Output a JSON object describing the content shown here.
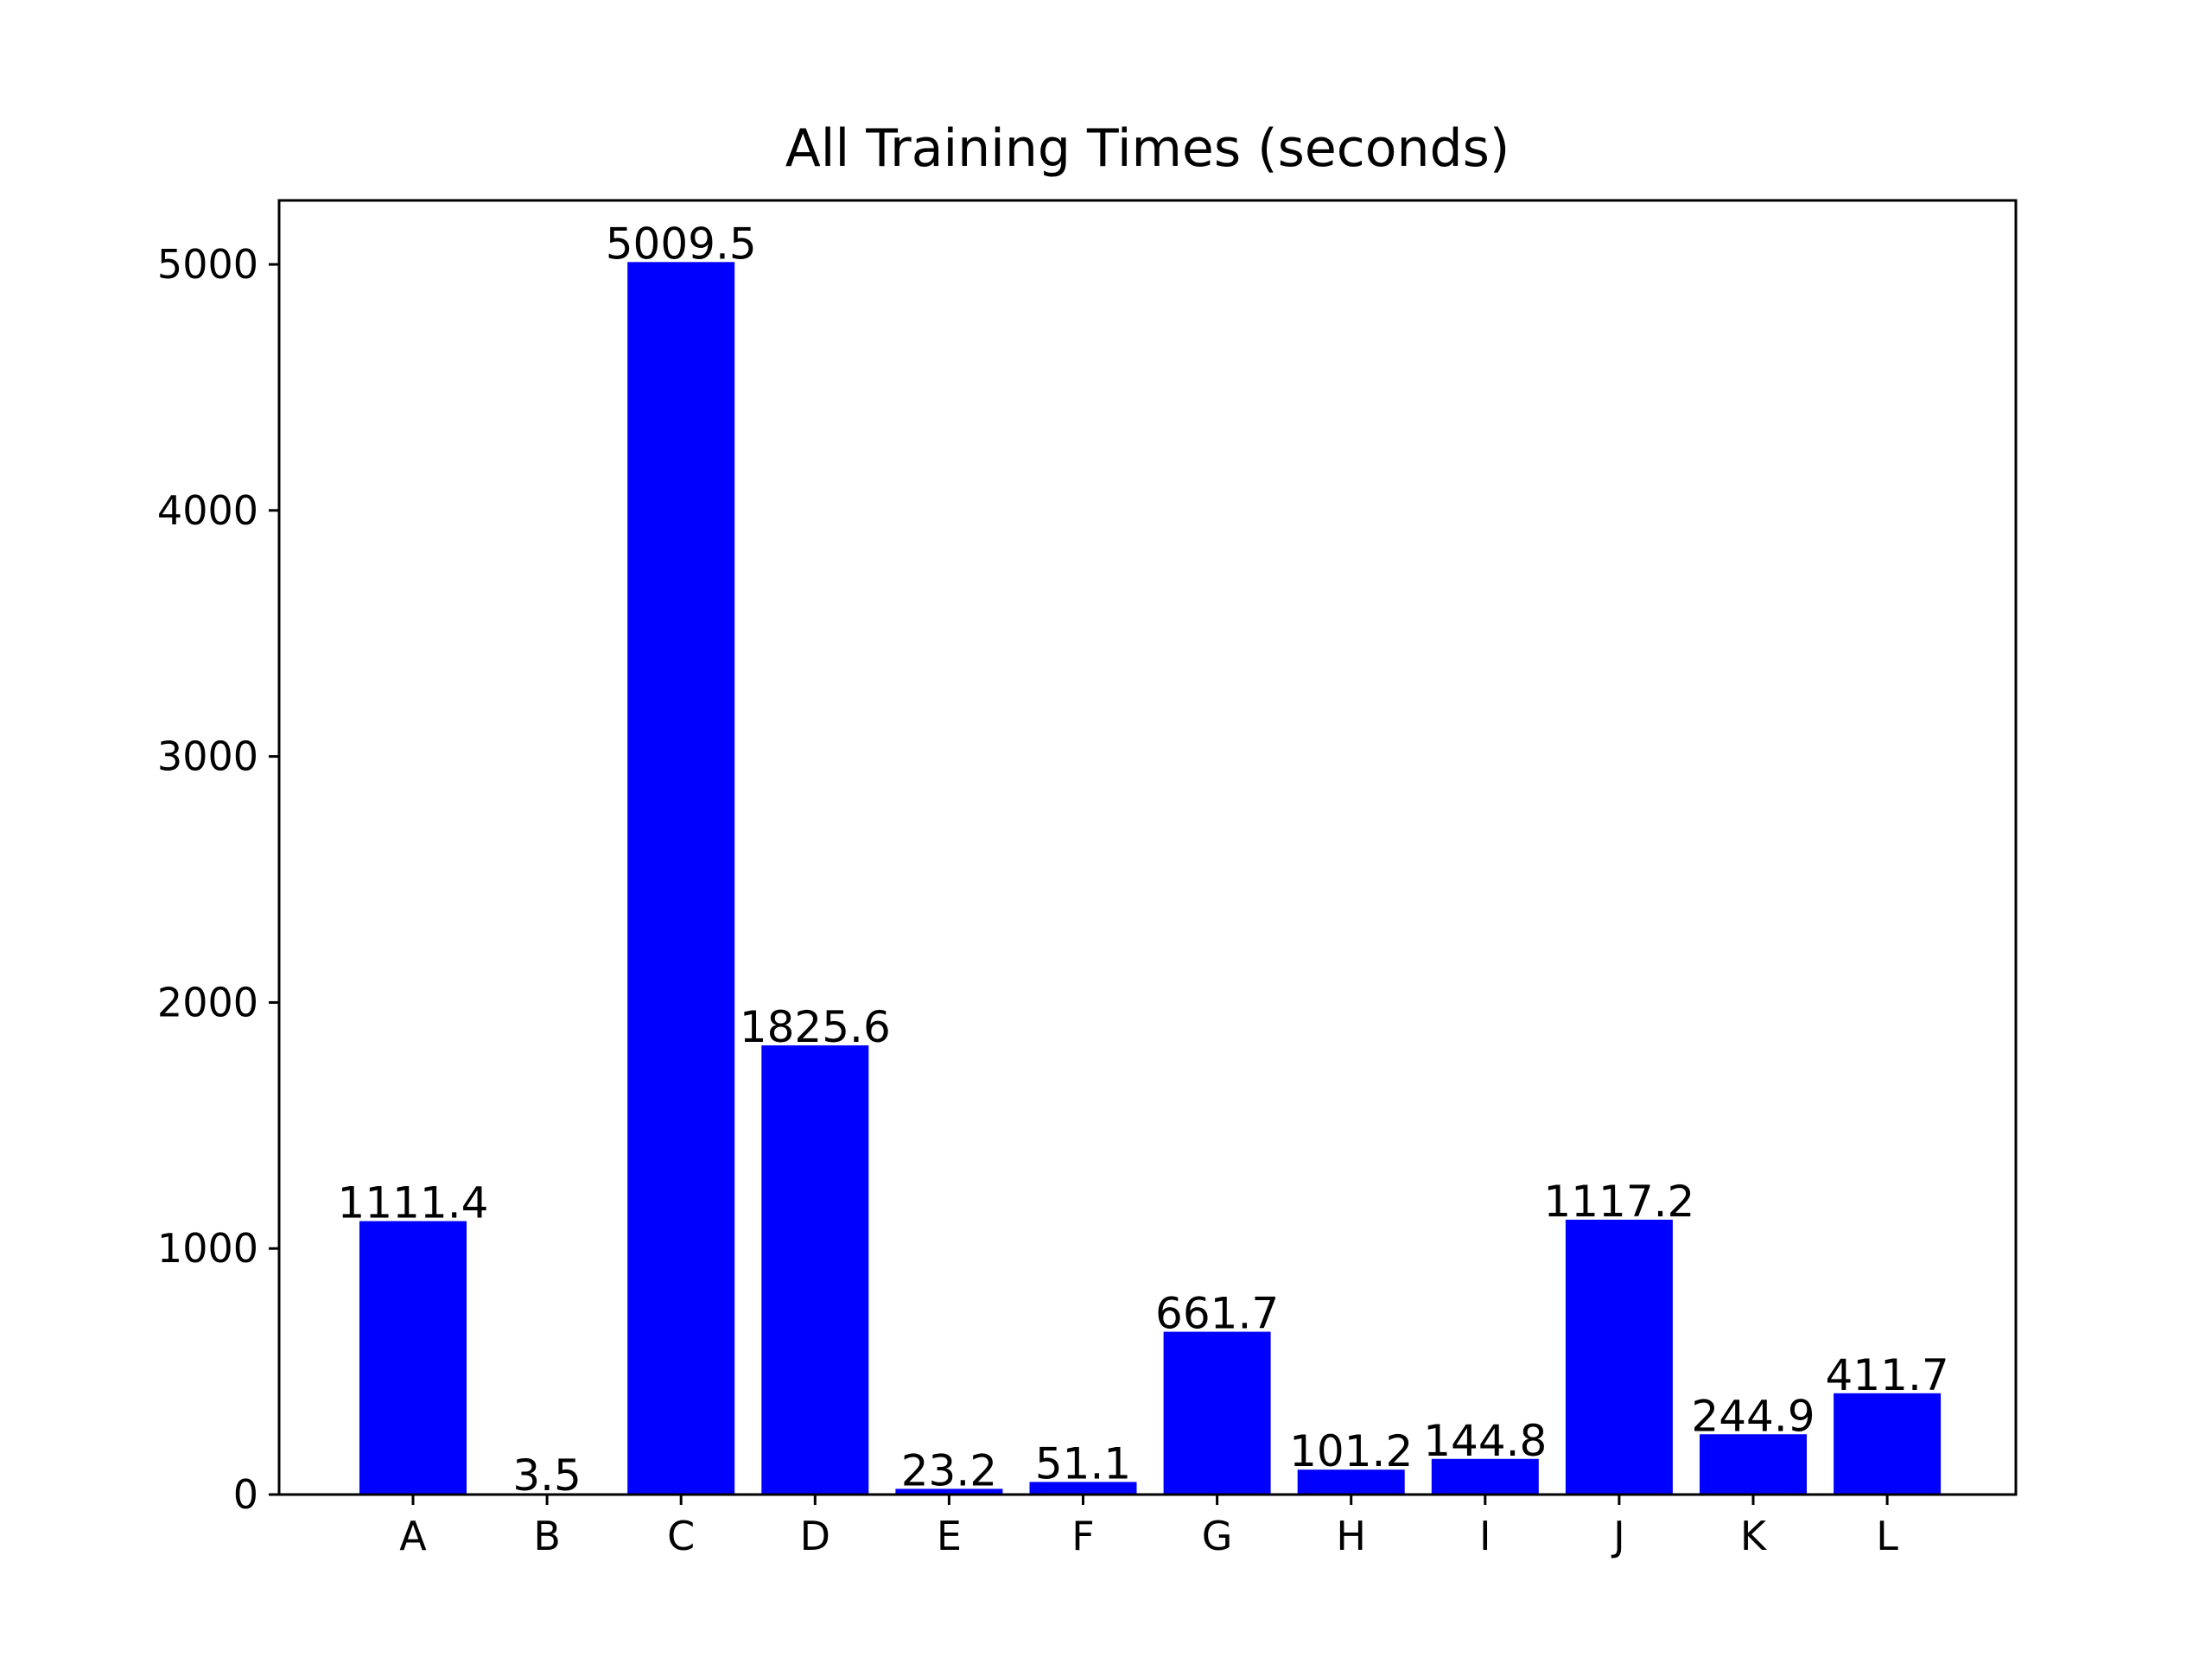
{
  "chart_data": {
    "type": "bar",
    "title": "All Training Times (seconds)",
    "xlabel": "",
    "ylabel": "",
    "categories": [
      "A",
      "B",
      "C",
      "D",
      "E",
      "F",
      "G",
      "H",
      "I",
      "J",
      "K",
      "L"
    ],
    "values": [
      1111.4,
      3.5,
      5009.5,
      1825.6,
      23.2,
      51.1,
      661.7,
      101.2,
      144.8,
      1117.2,
      244.9,
      411.7
    ],
    "value_labels": [
      "1111.4",
      "3.5",
      "5009.5",
      "1825.6",
      "23.2",
      "51.1",
      "661.7",
      "101.2",
      "144.8",
      "1117.2",
      "244.9",
      "411.7"
    ],
    "yticks": [
      0,
      1000,
      2000,
      3000,
      4000,
      5000
    ],
    "ytick_labels": [
      "0",
      "1000",
      "2000",
      "3000",
      "4000",
      "5000"
    ],
    "ylim": [
      0,
      5260
    ],
    "grid": false,
    "legend": "none",
    "bar_color": "#0000ff"
  }
}
